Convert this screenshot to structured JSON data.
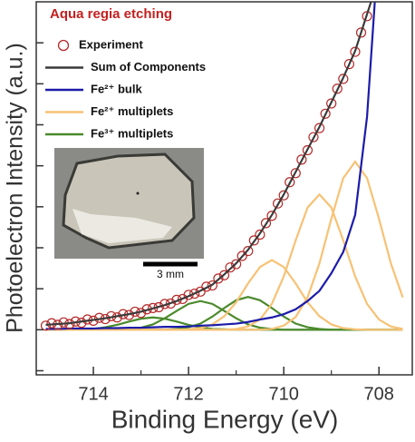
{
  "chart_data": {
    "type": "xps",
    "annotation": "Aqua regia etching",
    "xlabel": "Binding Energy (eV)",
    "ylabel": "Photoelectron Intensity (a.u.)",
    "scale_bar_label": "3 mm",
    "xlim": [
      715.2,
      707.3
    ],
    "ylim": [
      -1.1,
      8.0
    ],
    "xticks": [
      714,
      712,
      710,
      708
    ],
    "xminor": [
      713,
      711,
      709
    ],
    "yticks": [
      -1,
      0,
      1,
      2,
      3,
      4,
      5,
      6,
      7
    ],
    "x": [
      715,
      714.75,
      714.5,
      714.25,
      714,
      713.75,
      713.5,
      713.25,
      713,
      712.75,
      712.5,
      712.25,
      712,
      711.75,
      711.5,
      711.25,
      711,
      710.75,
      710.5,
      710.25,
      710,
      709.75,
      709.5,
      709.25,
      709,
      708.75,
      708.5,
      708.25,
      708,
      707.75,
      707.5
    ],
    "experiment": {
      "name": "Experiment",
      "color": "#b52a2a",
      "x": [
        715,
        714.875,
        714.75,
        714.625,
        714.5,
        714.375,
        714.25,
        714.125,
        714,
        713.875,
        713.75,
        713.625,
        713.5,
        713.375,
        713.25,
        713.125,
        713,
        712.875,
        712.75,
        712.625,
        712.5,
        712.375,
        712.25,
        712.125,
        712,
        711.875,
        711.75,
        711.625,
        711.5,
        711.375,
        711.25,
        711.125,
        711,
        710.875,
        710.75,
        710.625,
        710.5,
        710.375,
        710.25,
        710.125,
        710,
        709.875,
        709.75,
        709.625,
        709.5,
        709.375,
        709.25,
        709.125,
        709,
        708.875,
        708.75,
        708.625,
        708.5,
        708.375,
        708.25
      ],
      "values": [
        0.1,
        0.16,
        0.12,
        0.18,
        0.14,
        0.2,
        0.17,
        0.25,
        0.22,
        0.29,
        0.26,
        0.33,
        0.3,
        0.38,
        0.36,
        0.44,
        0.41,
        0.5,
        0.53,
        0.55,
        0.63,
        0.64,
        0.73,
        0.75,
        0.85,
        0.88,
        0.93,
        1.05,
        1.08,
        1.25,
        1.33,
        1.52,
        1.6,
        1.8,
        1.92,
        2.18,
        2.32,
        2.6,
        2.78,
        3.08,
        3.28,
        3.6,
        3.82,
        4.15,
        4.38,
        4.7,
        4.92,
        5.27,
        5.52,
        5.88,
        6.12,
        6.48,
        6.78,
        7.25,
        7.65
      ]
    },
    "series": [
      {
        "name": "Sum of Components",
        "color": "#3a3a3a",
        "values": [
          0.12,
          0.14,
          0.16,
          0.2,
          0.24,
          0.28,
          0.33,
          0.38,
          0.44,
          0.52,
          0.6,
          0.7,
          0.82,
          0.95,
          1.1,
          1.35,
          1.62,
          1.95,
          2.35,
          2.8,
          3.3,
          3.85,
          4.4,
          4.95,
          5.55,
          6.15,
          6.8,
          7.7,
          8.6,
          null,
          null
        ]
      },
      {
        "name": "Fe²⁺ bulk",
        "color": "#1c1caa",
        "values": [
          0.02,
          0.02,
          0.03,
          0.03,
          0.03,
          0.04,
          0.04,
          0.05,
          0.05,
          0.06,
          0.07,
          0.07,
          0.08,
          0.1,
          0.11,
          0.13,
          0.15,
          0.19,
          0.25,
          0.3,
          0.38,
          0.5,
          0.7,
          0.95,
          1.38,
          1.9,
          2.8,
          5.2,
          9.5,
          null,
          null
        ]
      },
      {
        "name": "Fe²⁺ multiplets",
        "color": "#f7c275",
        "curves": [
          [
            0,
            0,
            0,
            0,
            0,
            0,
            0,
            0,
            0,
            0,
            0,
            0,
            0,
            0,
            0,
            0,
            0,
            0,
            0,
            0.02,
            0.1,
            0.31,
            0.79,
            1.62,
            2.71,
            3.7,
            4.1,
            3.7,
            2.71,
            1.62,
            0.79
          ],
          [
            0,
            0,
            0,
            0,
            0,
            0,
            0,
            0,
            0,
            0,
            0,
            0,
            0,
            0,
            0,
            0,
            0.02,
            0.08,
            0.25,
            0.63,
            1.3,
            2.18,
            2.98,
            3.3,
            2.98,
            2.18,
            1.3,
            0.63,
            0.25,
            0.08,
            0.02
          ],
          [
            0,
            0,
            0,
            0,
            0,
            0,
            0,
            0,
            0,
            0,
            0,
            0,
            0.01,
            0.04,
            0.13,
            0.33,
            0.67,
            1.13,
            1.53,
            1.7,
            1.53,
            1.13,
            0.67,
            0.33,
            0.13,
            0.04,
            0.01,
            0,
            0,
            0,
            0
          ]
        ]
      },
      {
        "name": "Fe³⁺ multiplets",
        "color": "#4b8a2c",
        "curves": [
          [
            0,
            0,
            0,
            0,
            0,
            0,
            0,
            0,
            0,
            0,
            0,
            0.02,
            0.06,
            0.15,
            0.32,
            0.53,
            0.72,
            0.8,
            0.72,
            0.53,
            0.32,
            0.15,
            0.06,
            0.02,
            0,
            0,
            0,
            0,
            0,
            0,
            0
          ],
          [
            0,
            0,
            0,
            0,
            0,
            0,
            0,
            0.02,
            0.05,
            0.13,
            0.28,
            0.46,
            0.63,
            0.7,
            0.63,
            0.46,
            0.28,
            0.13,
            0.05,
            0.02,
            0,
            0,
            0,
            0,
            0,
            0,
            0,
            0,
            0,
            0,
            0
          ],
          [
            0,
            0,
            0,
            0.01,
            0.02,
            0.06,
            0.12,
            0.2,
            0.27,
            0.3,
            0.27,
            0.2,
            0.12,
            0.06,
            0.02,
            0.01,
            0,
            0,
            0,
            0,
            0,
            0,
            0,
            0,
            0,
            0,
            0,
            0,
            0,
            0,
            0
          ]
        ]
      }
    ]
  }
}
